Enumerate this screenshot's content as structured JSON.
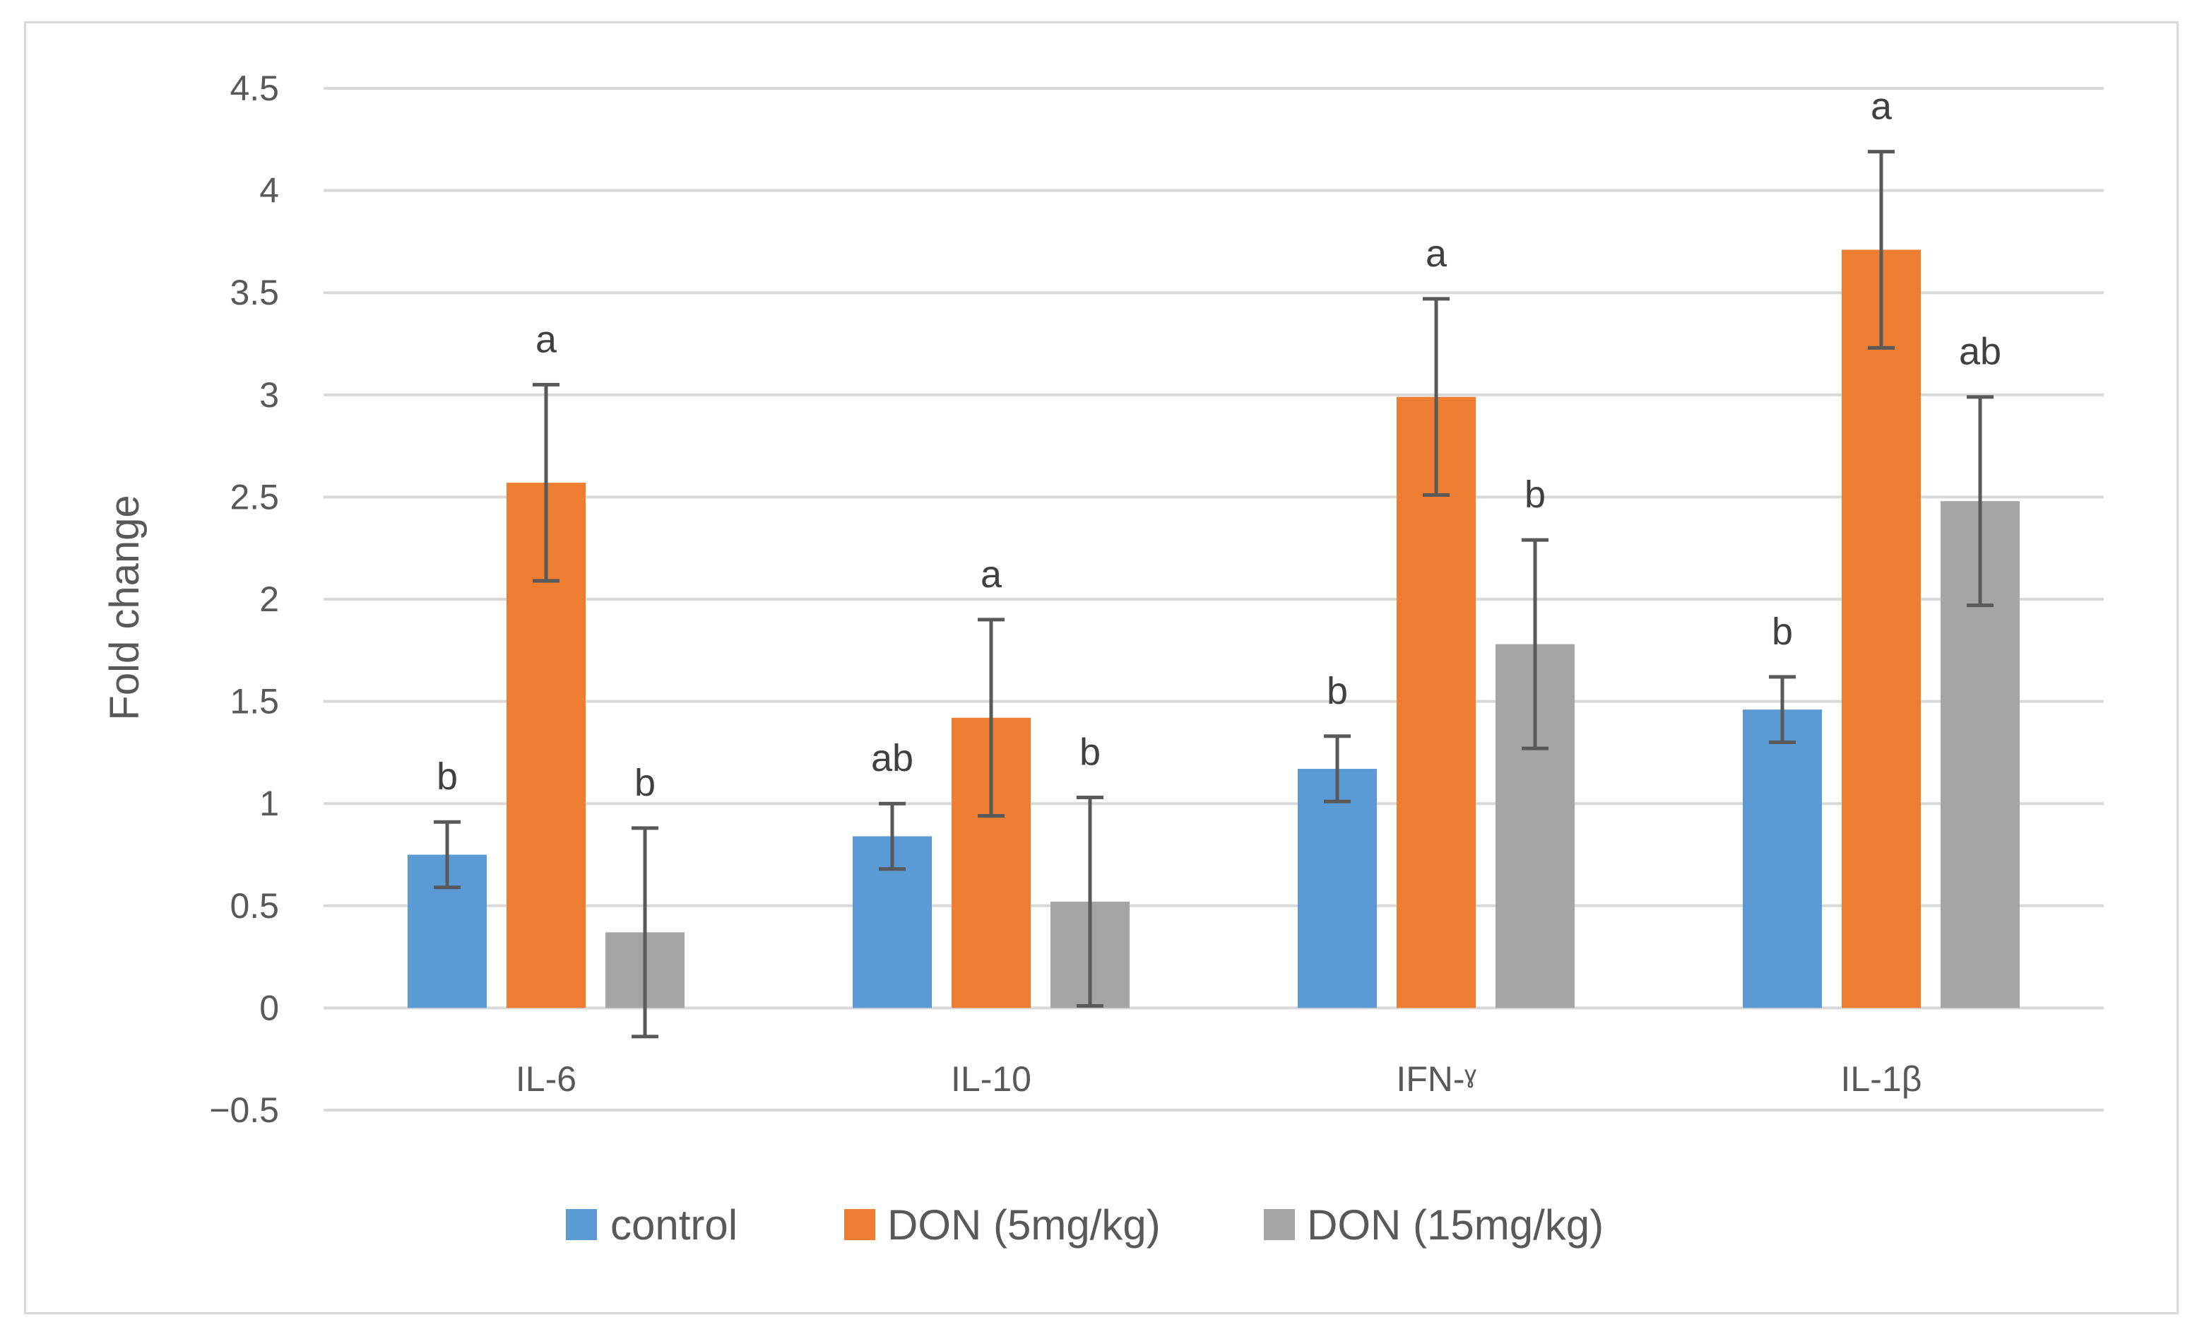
{
  "chart_data": {
    "type": "bar",
    "title": "",
    "xlabel": "",
    "ylabel": "Fold change",
    "ylim": [
      -0.5,
      4.5
    ],
    "yticks": [
      "4.5",
      "4",
      "3.5",
      "3",
      "2.5",
      "2",
      "1.5",
      "1",
      "0.5",
      "0",
      "−0.5"
    ],
    "ytick_values": [
      4.5,
      4,
      3.5,
      3,
      2.5,
      2,
      1.5,
      1,
      0.5,
      0,
      -0.5
    ],
    "grid": true,
    "legend_position": "bottom",
    "categories": [
      "IL-6",
      "IL-10",
      "IFN-ˠ",
      "IL-1β"
    ],
    "series": [
      {
        "name": "control",
        "color": "#5b9bd5",
        "values": [
          0.75,
          0.84,
          1.17,
          1.46
        ],
        "errors": [
          0.16,
          0.16,
          0.16,
          0.16
        ],
        "letters": [
          "b",
          "ab",
          "b",
          "b"
        ]
      },
      {
        "name": "DON (5mg/kg)",
        "color": "#ed7d31",
        "values": [
          2.57,
          1.42,
          2.99,
          3.71
        ],
        "errors": [
          0.48,
          0.48,
          0.48,
          0.48
        ],
        "letters": [
          "a",
          "a",
          "a",
          "a"
        ]
      },
      {
        "name": "DON (15mg/kg)",
        "color": "#a5a5a5",
        "values": [
          0.37,
          0.52,
          1.78,
          2.48
        ],
        "errors": [
          0.51,
          0.51,
          0.51,
          0.51
        ],
        "letters": [
          "b",
          "b",
          "b",
          "ab"
        ]
      }
    ]
  }
}
